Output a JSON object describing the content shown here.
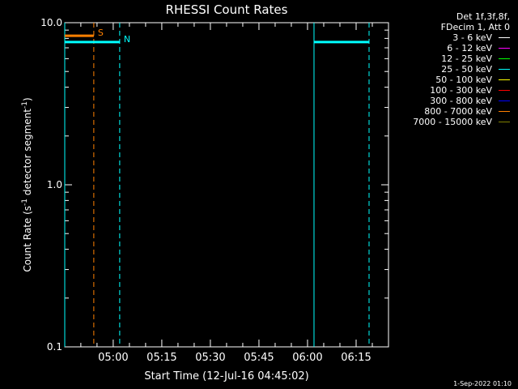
{
  "chart_data": {
    "type": "line",
    "title": "RHESSI Count Rates",
    "xlabel": "Start Time (12-Jul-16 04:45:02)",
    "ylabel": "Count Rate (s^-1 detector segment^-1)",
    "ylabel_parts": [
      "Count Rate (s",
      "-1",
      " detector segment",
      "-1",
      ")"
    ],
    "yscale": "log",
    "ylim": [
      0.1,
      10.0
    ],
    "xlim": [
      "04:45:02",
      "06:25:00"
    ],
    "yticks": [
      {
        "value": 0.1,
        "label": "0.1"
      },
      {
        "value": 1.0,
        "label": "1.0"
      },
      {
        "value": 10.0,
        "label": "10.0"
      }
    ],
    "xticks": [
      "05:00",
      "05:15",
      "05:30",
      "05:45",
      "06:00",
      "06:15"
    ],
    "series": [
      {
        "name": "800 - 7000 keV",
        "color": "#ff8000",
        "segments": [
          [
            [
              "04:45:02",
              8.3
            ],
            [
              "04:54:00",
              8.3
            ]
          ]
        ]
      },
      {
        "name": "25 - 50 keV",
        "color": "#00ffff",
        "segments": [
          [
            [
              "04:45:02",
              7.6
            ],
            [
              "05:02:00",
              7.6
            ]
          ],
          [
            [
              "06:02:00",
              7.6
            ],
            [
              "06:19:00",
              7.6
            ]
          ]
        ]
      }
    ],
    "vertical_lines": [
      {
        "time": "04:45:02",
        "color": "#00ffff",
        "style": "solid"
      },
      {
        "time": "04:54:00",
        "color": "#ff8000",
        "style": "dashed"
      },
      {
        "time": "05:02:00",
        "color": "#00ffff",
        "style": "dashed"
      },
      {
        "time": "06:02:00",
        "color": "#00ffff",
        "style": "solid"
      },
      {
        "time": "06:19:00",
        "color": "#00ffff",
        "style": "dashed"
      }
    ],
    "annotations": [
      {
        "text": "S",
        "time": "04:54:00",
        "color": "#ff8000"
      },
      {
        "text": "N",
        "time": "05:02:00",
        "color": "#00ffff"
      }
    ]
  },
  "legend": {
    "header": [
      "Det 1f,3f,8f,",
      "FDecim 1, Att 0"
    ],
    "items": [
      {
        "label": "3 - 6 keV",
        "color": "#ffffff"
      },
      {
        "label": "6 - 12 keV",
        "color": "#ff00ff"
      },
      {
        "label": "12 - 25 keV",
        "color": "#00ff00"
      },
      {
        "label": "25 - 50 keV",
        "color": "#00ffff"
      },
      {
        "label": "50 - 100 keV",
        "color": "#ffff00"
      },
      {
        "label": "100 - 300 keV",
        "color": "#ff0000"
      },
      {
        "label": "300 - 800 keV",
        "color": "#0000ff"
      },
      {
        "label": "800 - 7000 keV",
        "color": "#ff8000"
      },
      {
        "label": "7000 - 15000 keV",
        "color": "#808000"
      }
    ]
  },
  "footer": {
    "timestamp": "1-Sep-2022 01:10"
  }
}
